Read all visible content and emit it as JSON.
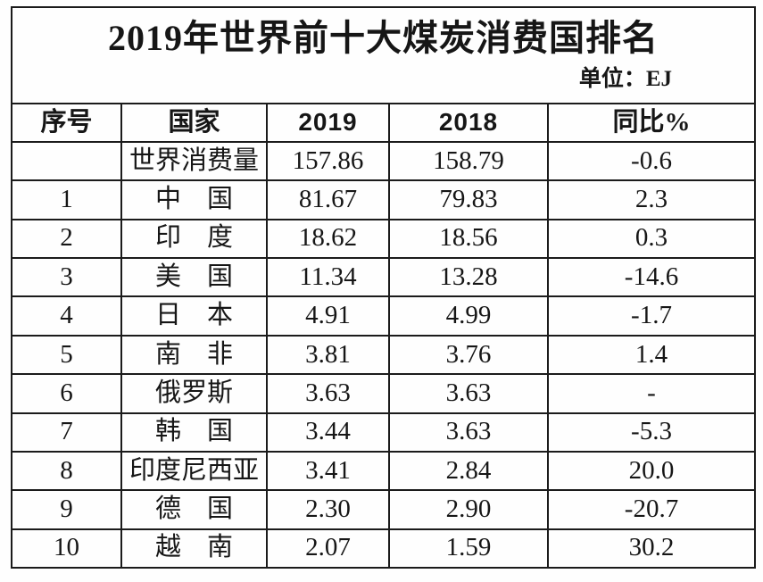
{
  "title": "2019年世界前十大煤炭消费国排名",
  "unit_label": "单位：EJ",
  "table": {
    "headers": [
      "序号",
      "国家",
      "2019",
      "2018",
      "同比%"
    ],
    "rows": [
      [
        "",
        "世界消费量",
        "157.86",
        "158.79",
        "-0.6"
      ],
      [
        "1",
        "中　国",
        "81.67",
        "79.83",
        "2.3"
      ],
      [
        "2",
        "印　度",
        "18.62",
        "18.56",
        "0.3"
      ],
      [
        "3",
        "美　国",
        "11.34",
        "13.28",
        "-14.6"
      ],
      [
        "4",
        "日　本",
        "4.91",
        "4.99",
        "-1.7"
      ],
      [
        "5",
        "南　非",
        "3.81",
        "3.76",
        "1.4"
      ],
      [
        "6",
        "俄罗斯",
        "3.63",
        "3.63",
        "-"
      ],
      [
        "7",
        "韩　国",
        "3.44",
        "3.63",
        "-5.3"
      ],
      [
        "8",
        "印度尼西亚",
        "3.41",
        "2.84",
        "20.0"
      ],
      [
        "9",
        "德　国",
        "2.30",
        "2.90",
        "-20.7"
      ],
      [
        "10",
        "越　南",
        "2.07",
        "1.59",
        "30.2"
      ]
    ]
  },
  "colors": {
    "background": "#fefefe",
    "border": "#1b1b1b",
    "text": "#161616"
  }
}
